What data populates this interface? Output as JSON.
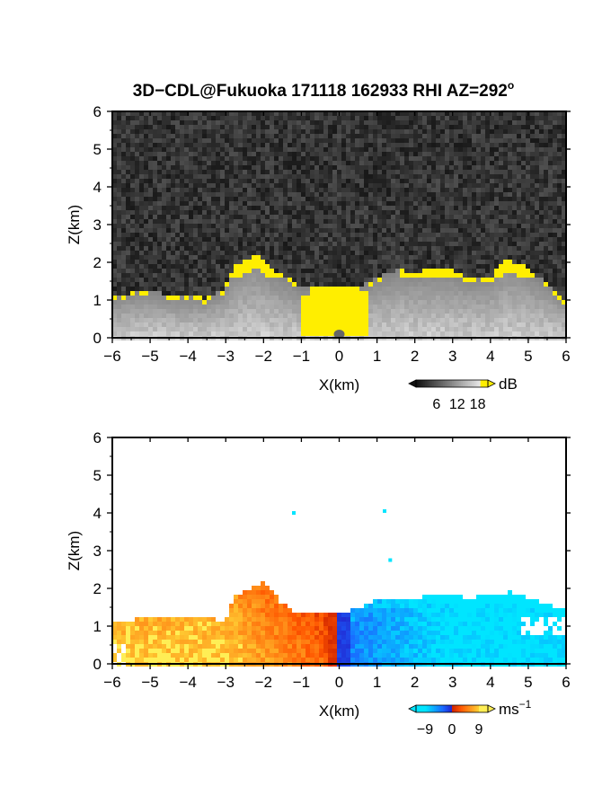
{
  "title": "3D−CDL@Fukuoka 171118 162933 RHI AZ=292",
  "title_superscript": "o",
  "colors": {
    "reflectivity_high": "#ffee00",
    "reflectivity_gray_low": "#333333",
    "reflectivity_gray_high": "#e6e6e6",
    "velocity_negative": "#1a66ff",
    "velocity_zero": "#cc2200",
    "velocity_positive": "#ffcc33"
  },
  "chart_data": [
    {
      "type": "heatmap",
      "name": "reflectivity",
      "title": "",
      "xlabel": "X(km)",
      "ylabel": "Z(km)",
      "xlim": [
        -6,
        6
      ],
      "ylim": [
        0,
        6
      ],
      "x_ticks": [
        -6,
        -5,
        -4,
        -3,
        -2,
        -1,
        0,
        1,
        2,
        3,
        4,
        5,
        6
      ],
      "y_ticks": [
        0,
        1,
        2,
        3,
        4,
        5,
        6
      ],
      "x_tick_labels": [
        "−6",
        "−5",
        "−4",
        "−3",
        "−2",
        "−1",
        "0",
        "1",
        "2",
        "3",
        "4",
        "5",
        "6"
      ],
      "y_tick_labels": [
        "0",
        "1",
        "2",
        "3",
        "4",
        "5",
        "6"
      ],
      "colorbar": {
        "unit": "dB",
        "ticks": [
          "6",
          "12",
          "18"
        ],
        "range": [
          0,
          21
        ]
      },
      "echo_top_km": [
        {
          "x": -6.0,
          "z": 1.05
        },
        {
          "x": -5.5,
          "z": 1.2
        },
        {
          "x": -5.0,
          "z": 1.25
        },
        {
          "x": -4.5,
          "z": 1.15
        },
        {
          "x": -4.0,
          "z": 1.1
        },
        {
          "x": -3.5,
          "z": 1.05
        },
        {
          "x": -3.0,
          "z": 1.35
        },
        {
          "x": -2.8,
          "z": 1.9
        },
        {
          "x": -2.2,
          "z": 2.2
        },
        {
          "x": -1.8,
          "z": 1.8
        },
        {
          "x": -1.3,
          "z": 1.55
        },
        {
          "x": -1.0,
          "z": 1.3
        },
        {
          "x": 0.0,
          "z": 1.3
        },
        {
          "x": 0.5,
          "z": 1.35
        },
        {
          "x": 1.0,
          "z": 1.6
        },
        {
          "x": 1.5,
          "z": 1.8
        },
        {
          "x": 2.0,
          "z": 1.75
        },
        {
          "x": 2.5,
          "z": 1.8
        },
        {
          "x": 3.0,
          "z": 1.8
        },
        {
          "x": 3.5,
          "z": 1.55
        },
        {
          "x": 4.0,
          "z": 1.6
        },
        {
          "x": 4.4,
          "z": 2.1
        },
        {
          "x": 4.9,
          "z": 1.9
        },
        {
          "x": 5.3,
          "z": 1.6
        },
        {
          "x": 5.7,
          "z": 1.3
        },
        {
          "x": 6.0,
          "z": 1.0
        }
      ],
      "high_echo_regions": [
        {
          "label": "near-radar core",
          "x": [
            -1.0,
            0.8
          ],
          "z": [
            0.0,
            1.3
          ],
          "value_db": 20
        },
        {
          "label": "left plume top",
          "x": [
            -2.8,
            -1.4
          ],
          "z": [
            1.6,
            2.3
          ],
          "value_db": 20
        },
        {
          "label": "right cloud tops",
          "x": [
            1.6,
            5.6
          ],
          "z": [
            1.6,
            2.1
          ],
          "value_db": 20
        }
      ]
    },
    {
      "type": "heatmap",
      "name": "doppler_velocity",
      "title": "",
      "xlabel": "X(km)",
      "ylabel": "Z(km)",
      "xlim": [
        -6,
        6
      ],
      "ylim": [
        0,
        6
      ],
      "x_ticks": [
        -6,
        -5,
        -4,
        -3,
        -2,
        -1,
        0,
        1,
        2,
        3,
        4,
        5,
        6
      ],
      "y_ticks": [
        0,
        1,
        2,
        3,
        4,
        5,
        6
      ],
      "x_tick_labels": [
        "−6",
        "−5",
        "−4",
        "−3",
        "−2",
        "−1",
        "0",
        "1",
        "2",
        "3",
        "4",
        "5",
        "6"
      ],
      "y_tick_labels": [
        "0",
        "1",
        "2",
        "3",
        "4",
        "5",
        "6"
      ],
      "colorbar": {
        "unit": "ms",
        "unit_superscript": "−1",
        "ticks": [
          "−9",
          "0",
          "9"
        ],
        "range": [
          -12,
          12
        ]
      },
      "regions": [
        {
          "label": "positive velocities",
          "x": [
            -6.0,
            0.2
          ],
          "z_top_km": 1.3,
          "value_ms": 9
        },
        {
          "label": "near zero",
          "x": [
            -0.3,
            0.3
          ],
          "z_top_km": 1.3,
          "value_ms": 0
        },
        {
          "label": "negative velocities",
          "x": [
            0.3,
            6.0
          ],
          "z_top_km": 1.8,
          "value_ms": -9
        }
      ],
      "scattered_points": [
        {
          "x": -1.2,
          "z": 4.0
        },
        {
          "x": 1.2,
          "z": 4.05
        },
        {
          "x": 1.35,
          "z": 2.75
        }
      ]
    }
  ]
}
